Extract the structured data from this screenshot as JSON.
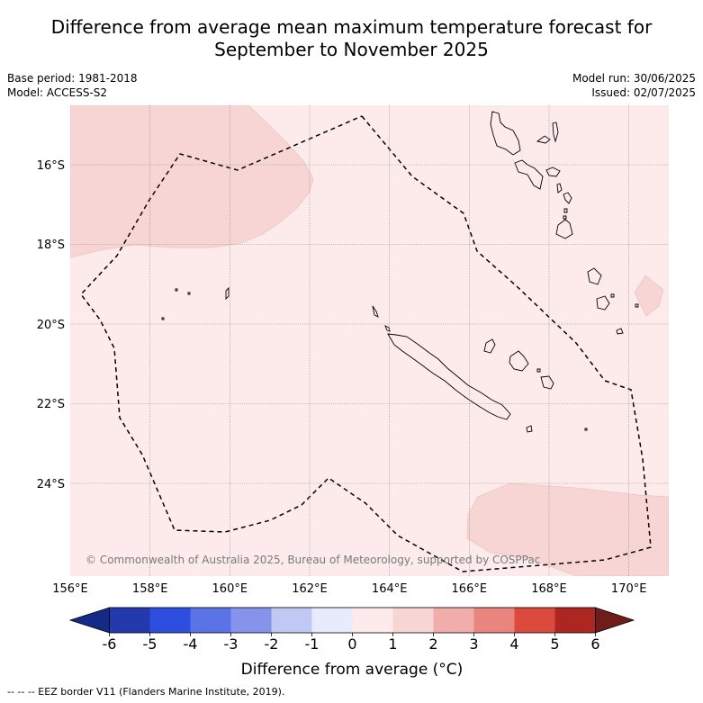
{
  "title_line1": "Difference from average mean maximum temperature forecast for",
  "title_line2": "September to November 2025",
  "base_period": "Base period: 1981-2018",
  "model": "Model: ACCESS-S2",
  "model_run": "Model run: 30/06/2025",
  "issued": "Issued: 02/07/2025",
  "copyright": "© Commonwealth of Australia 2025, Bureau of Meteorology, supported by COSPPac",
  "lat_labels": [
    "16°S",
    "18°S",
    "20°S",
    "22°S",
    "24°S"
  ],
  "lon_labels": [
    "156°E",
    "158°E",
    "160°E",
    "162°E",
    "164°E",
    "166°E",
    "168°E",
    "170°E"
  ],
  "colorbar": {
    "label": "Difference from average (°C)",
    "ticks": [
      "-6",
      "-5",
      "-4",
      "-3",
      "-2",
      "-1",
      "0",
      "1",
      "2",
      "3",
      "4",
      "5",
      "6"
    ],
    "colors": [
      "#132a86",
      "#2339ad",
      "#2e4ee0",
      "#5a73e6",
      "#8593ea",
      "#c0c8f4",
      "#e7ebfb",
      "#fcebea",
      "#f7d5d4",
      "#f0ada9",
      "#e8857f",
      "#dc4a3e",
      "#ad2622",
      "#6f1c1a"
    ]
  },
  "legend_note": "--  --  -- EEZ border V11 (Flanders Marine Institute, 2019).",
  "colors": {
    "base_anomaly": "#fcebea",
    "warm_anomaly": "#f7d5d4",
    "grid": "#888888"
  }
}
